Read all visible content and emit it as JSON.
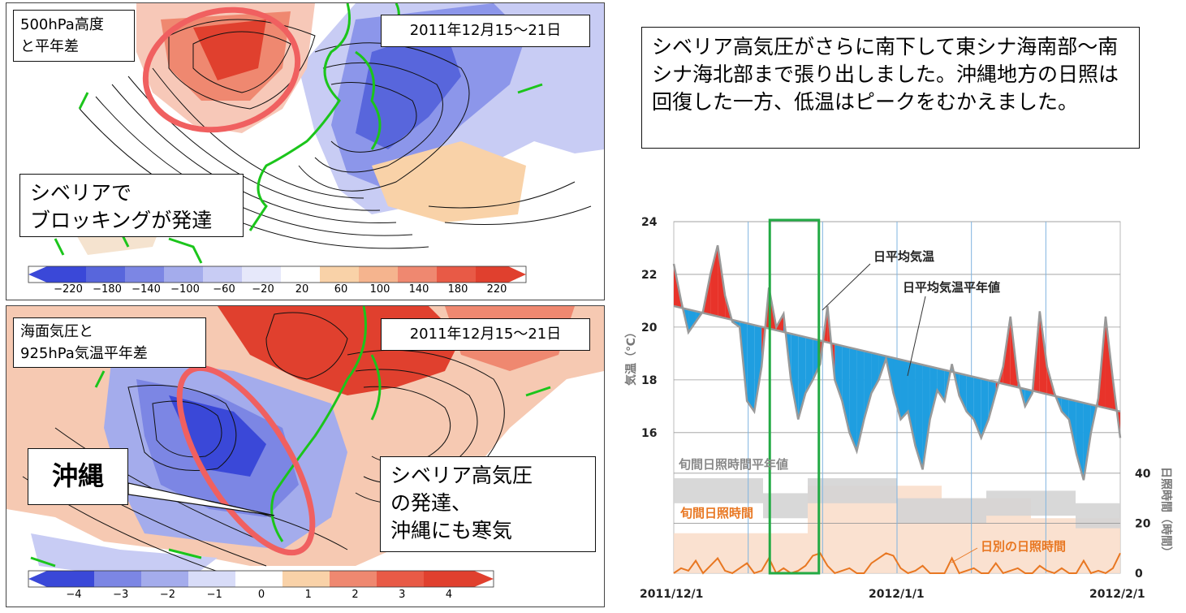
{
  "map_top": {
    "title": "500hPa高度\nと平年差",
    "date": "2011年12月15〜21日",
    "callout": "シベリアで\nブロッキングが発達",
    "scale_labels": [
      "−220",
      "−180",
      "−140",
      "−100",
      "−60",
      "−20",
      "20",
      "60",
      "100",
      "140",
      "180",
      "220"
    ]
  },
  "map_bottom": {
    "title": "海面気圧と\n925hPa気温平年差",
    "date": "2011年12月15〜21日",
    "region_label": "沖縄",
    "callout": "シベリア高気圧\nの発達、\n沖縄にも寒気",
    "scale_labels": [
      "−4",
      "−3",
      "−2",
      "−1",
      "0",
      "1",
      "2",
      "3",
      "4"
    ]
  },
  "description": "シベリア高気圧がさらに南下して東シナ海南部〜南シナ海北部まで張り出しました。沖縄地方の日照は回復した一方、低温はピークをむかえました。",
  "colors": {
    "warm": "#e8332a",
    "cold": "#1f9ee0",
    "gray_line": "#999999",
    "sunshine": "#e87722",
    "green": "#22aa44",
    "callout_ring": "#f06060"
  },
  "chart_data": {
    "type": "area",
    "y_left_label": "気温（℃）",
    "y_right_label": "日照時間（時間）",
    "y_left_ticks": [
      "24",
      "22",
      "20",
      "18",
      "16"
    ],
    "y_right_ticks": [
      "40",
      "20",
      "0"
    ],
    "x_ticks": [
      "2011/12/1",
      "2012/1/1",
      "2012/2/1"
    ],
    "annot_temp": "日平均気温",
    "annot_normal": "日平均気温平年値",
    "annot_sun_normal": "旬間日照時間平年値",
    "annot_sun_dekad": "旬間日照時間",
    "annot_sun_daily": "日別の日照時間",
    "ylim": [
      14,
      24
    ],
    "normal_start": 20.8,
    "normal_end": 16.8,
    "daily_temp": [
      22.4,
      21.0,
      19.8,
      20.2,
      20.6,
      22.0,
      23.1,
      21.2,
      20.2,
      20.0,
      17.2,
      16.8,
      18.5,
      21.5,
      20.0,
      20.5,
      18.0,
      16.5,
      17.5,
      18.0,
      18.6,
      20.8,
      18.0,
      17.2,
      16.0,
      15.3,
      16.5,
      17.5,
      18.0,
      18.8,
      17.5,
      16.5,
      16.8,
      15.5,
      14.6,
      16.5,
      17.6,
      17.2,
      18.6,
      17.4,
      16.8,
      16.5,
      15.8,
      16.5,
      17.5,
      18.5,
      20.4,
      18.0,
      17.0,
      17.5,
      20.6,
      18.5,
      17.5,
      16.8,
      16.5,
      15.2,
      14.2,
      16.0,
      17.3,
      20.4,
      18.0,
      15.8
    ],
    "sun_daily": [
      0,
      2,
      1,
      5,
      0,
      3,
      6,
      1,
      0,
      2,
      4,
      0,
      1,
      6,
      0,
      2,
      0,
      1,
      3,
      7,
      8,
      3,
      0,
      1,
      2,
      0,
      0,
      4,
      6,
      8,
      7,
      2,
      0,
      1,
      3,
      0,
      0,
      0,
      6,
      0,
      1,
      2,
      0,
      0,
      4,
      0,
      1,
      2,
      0,
      0,
      3,
      1,
      0,
      2,
      0,
      0,
      5,
      0,
      1,
      0,
      2,
      8
    ],
    "sun_dekad_mean": [
      38,
      38,
      32,
      38,
      38,
      30,
      30,
      33,
      33,
      28
    ],
    "sun_dekad": [
      16,
      16,
      16,
      35,
      35,
      35,
      30,
      30,
      22,
      22
    ]
  }
}
